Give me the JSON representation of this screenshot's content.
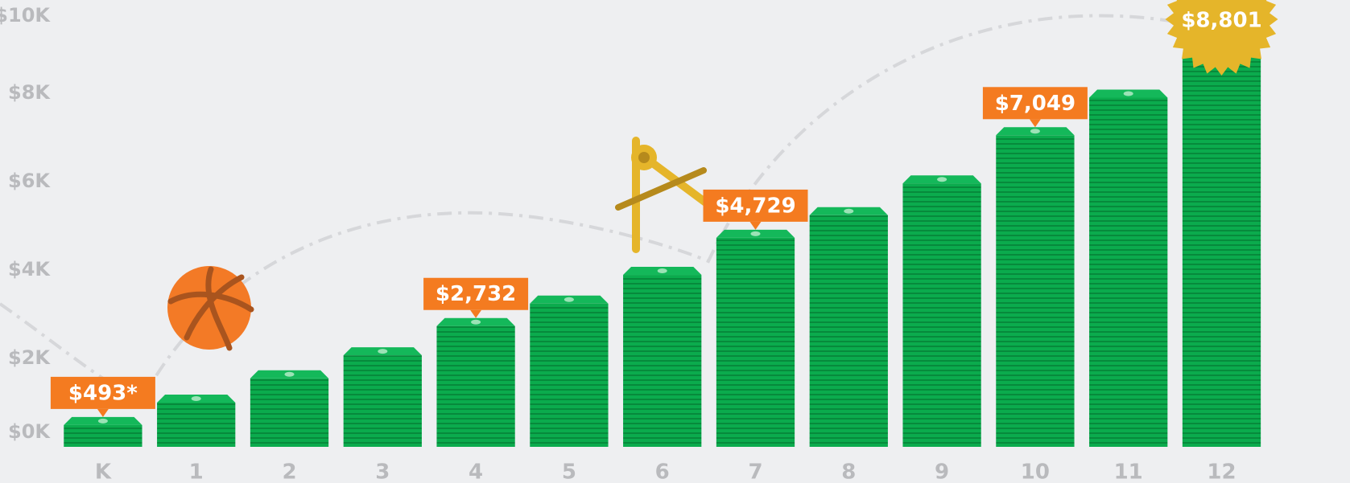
{
  "chart_data": {
    "type": "bar",
    "categories": [
      "K",
      "1",
      "2",
      "3",
      "4",
      "5",
      "6",
      "7",
      "8",
      "9",
      "10",
      "11",
      "12"
    ],
    "values": [
      493,
      1000,
      1550,
      2070,
      2732,
      3240,
      3890,
      4729,
      5240,
      5960,
      7049,
      7900,
      8801
    ],
    "value_labels": [
      "$493*",
      null,
      null,
      null,
      "$2,732",
      null,
      null,
      "$4,729",
      null,
      null,
      "$7,049",
      null,
      "$8,801"
    ],
    "color": "#0bab4d",
    "label_color": "#f47b20",
    "highlight_color": "#e5b52a",
    "ylim": [
      0,
      10000
    ],
    "yticks": [
      {
        "value": 0,
        "label": "$0K"
      },
      {
        "value": 2000,
        "label": "$2K"
      },
      {
        "value": 4000,
        "label": "$4K"
      },
      {
        "value": 6000,
        "label": "$6K"
      },
      {
        "value": 8000,
        "label": "$8K"
      },
      {
        "value": 10000,
        "label": "$10K"
      }
    ]
  }
}
